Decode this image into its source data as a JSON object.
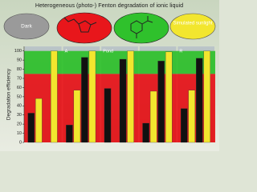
{
  "chart_data": {
    "type": "bar",
    "title": "Heterogeneous (photo-) Fenton degradation of ionic liquid",
    "legend": [
      "Dark",
      "Simulated sunlight"
    ],
    "y_label": "Degradation efficiency",
    "categories": [
      null,
      "A",
      "Pond",
      null,
      "R"
    ],
    "series": [
      {
        "color": "#111111",
        "values": [
          32,
          19,
          59,
          21,
          37
        ]
      },
      {
        "color": "#f2e62e",
        "values": [
          48,
          57,
          null,
          56,
          57
        ]
      },
      {
        "color": "#111111",
        "values": [
          null,
          93,
          91,
          89,
          92
        ]
      },
      {
        "color": "#f2e62e",
        "values": [
          100,
          100,
          100,
          99,
          100
        ]
      }
    ],
    "bands": [
      {
        "from": 0,
        "to": 75,
        "color": "#e8161b"
      },
      {
        "from": 75,
        "to": 100,
        "color": "#2fc12c"
      }
    ],
    "ylim": [
      0,
      105
    ],
    "yticks": [
      0,
      10,
      20,
      30,
      40,
      50,
      60,
      70,
      80,
      90,
      100
    ]
  }
}
